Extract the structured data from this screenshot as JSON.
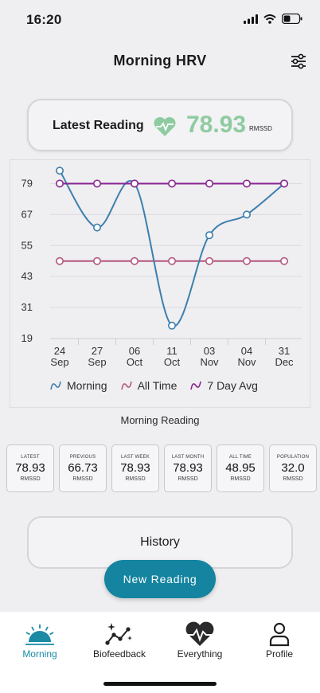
{
  "status": {
    "time": "16:20"
  },
  "header": {
    "title": "Morning HRV"
  },
  "latest": {
    "label": "Latest Reading",
    "value": "78.93",
    "unit": "RMSSD"
  },
  "colors": {
    "accent": "#1484a0",
    "latest_value": "#8fcba1",
    "morning_series": "#3c7fae",
    "alltime_series": "#b4577e",
    "avg_series": "#8a2593"
  },
  "chart_data": {
    "type": "line",
    "categories": [
      "24 Sep",
      "27 Sep",
      "06 Oct",
      "11 Oct",
      "03 Nov",
      "04 Nov",
      "31 Dec"
    ],
    "y_ticks": [
      19,
      31,
      43,
      55,
      67,
      79
    ],
    "ylim": [
      19,
      85
    ],
    "grid": true,
    "legend_position": "bottom",
    "series": [
      {
        "name": "Morning",
        "values": [
          84,
          62,
          79,
          24,
          59,
          67,
          79
        ]
      },
      {
        "name": "All Time",
        "values": [
          49,
          49,
          49,
          49,
          49,
          49,
          49
        ]
      },
      {
        "name": "7 Day Avg",
        "values": [
          79,
          79,
          79,
          79,
          79,
          79,
          79
        ]
      }
    ]
  },
  "caption": "Morning Reading",
  "stats": [
    {
      "label": "LATEST",
      "value": "78.93",
      "unit": "RMSSD"
    },
    {
      "label": "PREVIOUS",
      "value": "66.73",
      "unit": "RMSSD"
    },
    {
      "label": "LAST WEEK",
      "value": "78.93",
      "unit": "RMSSD"
    },
    {
      "label": "LAST MONTH",
      "value": "78.93",
      "unit": "RMSSD"
    },
    {
      "label": "ALL TIME",
      "value": "48.95",
      "unit": "RMSSD"
    },
    {
      "label": "POPULATION",
      "value": "32.0",
      "unit": "RMSSD"
    }
  ],
  "history": {
    "label": "History"
  },
  "new_reading": {
    "label": "New Reading"
  },
  "tabs": [
    {
      "label": "Morning",
      "icon": "sunrise-icon"
    },
    {
      "label": "Biofeedback",
      "icon": "sparkle-trend-icon"
    },
    {
      "label": "Everything",
      "icon": "heart-pulse-icon"
    },
    {
      "label": "Profile",
      "icon": "person-icon"
    }
  ]
}
